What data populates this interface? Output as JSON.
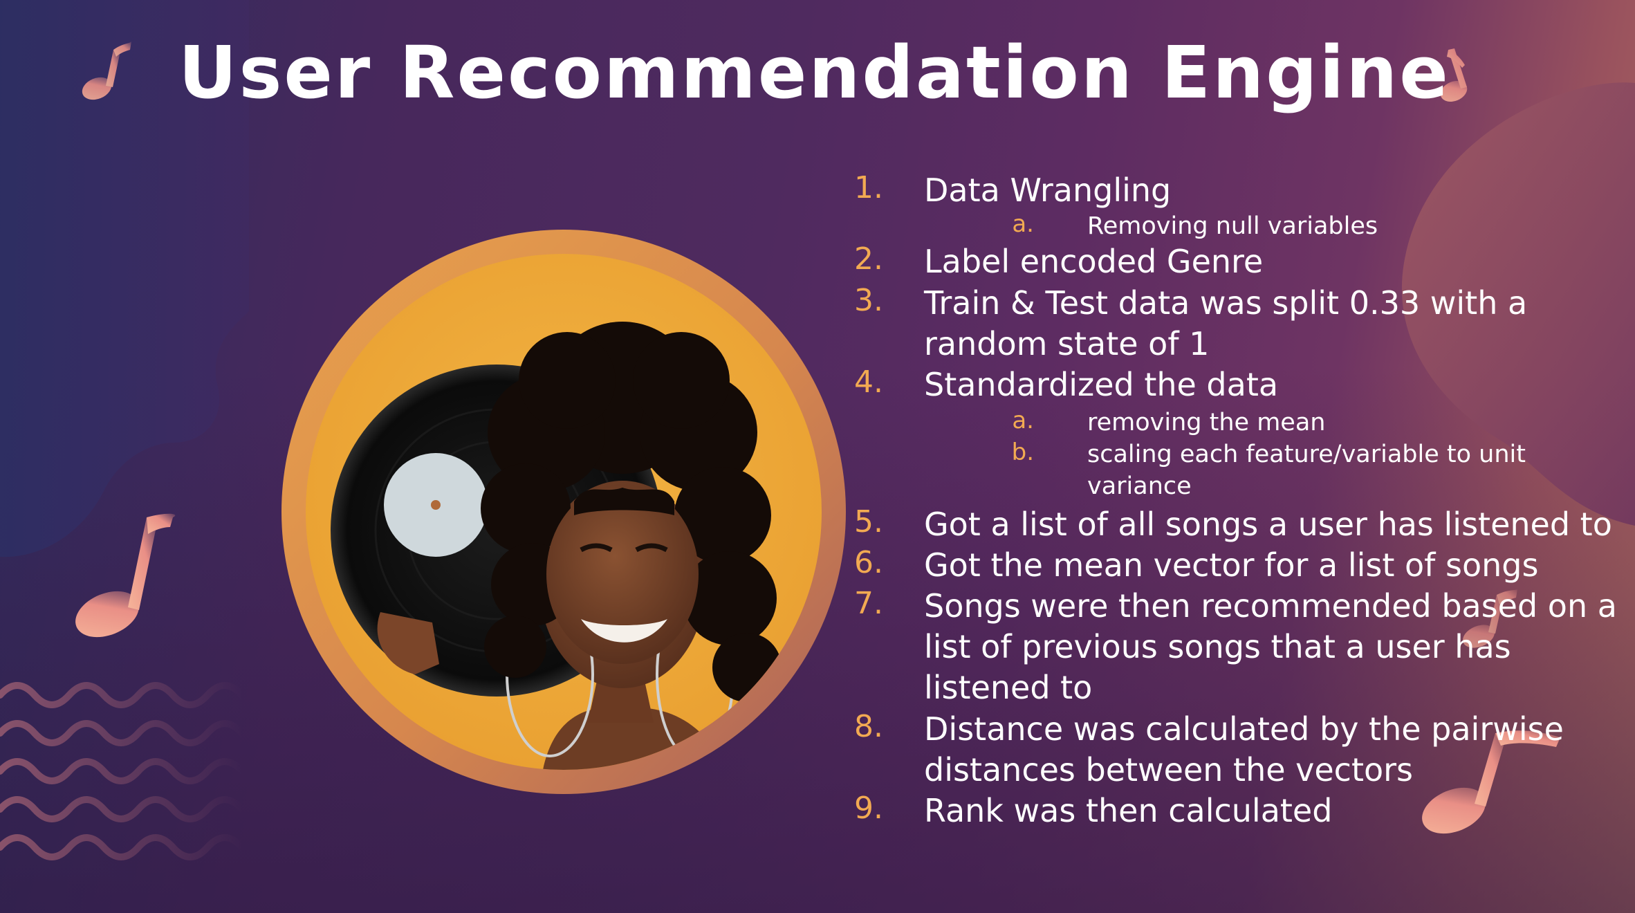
{
  "slide": {
    "title": "User Recommendation Engine",
    "colors": {
      "title_text": "#ffffff",
      "accent": "#f2aa52",
      "note": "#f4a07a",
      "background_dark": "#3f2656",
      "background_warm": "#b16a5f"
    },
    "image": {
      "subject": "woman holding a vinyl record",
      "icon": "portrait-photo"
    },
    "steps": [
      {
        "num": "1.",
        "text": "Data Wrangling",
        "sub": [
          {
            "num": "a.",
            "text": "Removing null variables"
          }
        ]
      },
      {
        "num": "2.",
        "text": "Label encoded Genre",
        "sub": []
      },
      {
        "num": "3.",
        "text": "Train & Test data was split 0.33 with a random state of 1",
        "sub": []
      },
      {
        "num": "4.",
        "text": "Standardized the data",
        "sub": [
          {
            "num": "a.",
            "text": "removing the mean"
          },
          {
            "num": "b.",
            "text": "scaling each feature/variable to unit variance"
          }
        ]
      },
      {
        "num": "5.",
        "text": "Got a list of all songs a user has listened to",
        "sub": []
      },
      {
        "num": "6.",
        "text": "Got the mean vector for a list of songs",
        "sub": []
      },
      {
        "num": "7.",
        "text": "Songs were then recommended based on a list of previous songs that a user has listened to",
        "sub": []
      },
      {
        "num": "8.",
        "text": "Distance was calculated by the pairwise distances between the vectors",
        "sub": []
      },
      {
        "num": "9.",
        "text": "Rank was then calculated",
        "sub": []
      }
    ]
  }
}
